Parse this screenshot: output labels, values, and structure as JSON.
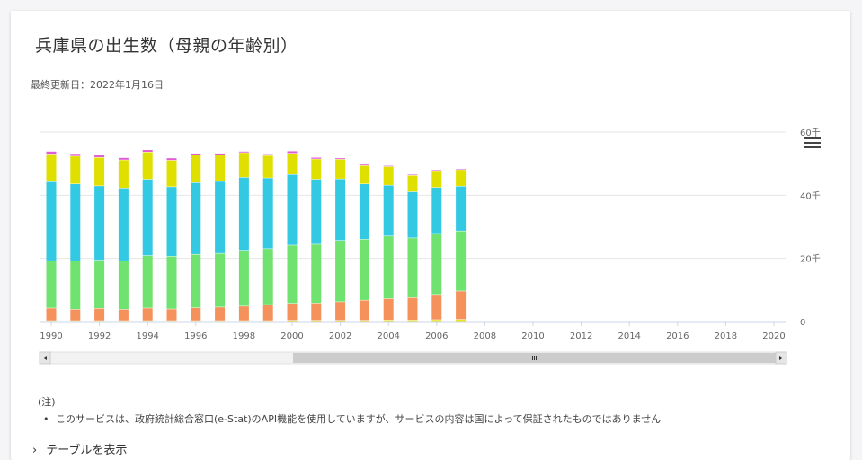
{
  "page": {
    "title": "兵庫県の出生数（母親の年齢別）",
    "updated": "最終更新日：2022年1月16日",
    "note_head": "(注)",
    "note_item": "このサービスは、政府統計総合窓口(e-Stat)のAPI機能を使用していますが、サービスの内容は国によって保証されたものではありません",
    "table_toggle": "テーブルを表示",
    "menu_icon": "hamburger-icon"
  },
  "chart_data": {
    "type": "bar",
    "stacked": true,
    "title": "",
    "xlabel": "",
    "ylabel": "",
    "xlim": [
      1990,
      2020
    ],
    "ylim": [
      0,
      60000
    ],
    "y_tick_labels": [
      "0",
      "20千",
      "40千",
      "60千"
    ],
    "y_tick_values": [
      0,
      20000,
      40000,
      60000
    ],
    "x_tick_labels": [
      "1990",
      "1992",
      "1994",
      "1996",
      "1998",
      "2000",
      "2002",
      "2004",
      "2006",
      "2008",
      "2010",
      "2012",
      "2014",
      "2016",
      "2018",
      "2020"
    ],
    "grid": true,
    "y_axis_side": "right",
    "navigator_scrollbar": true,
    "categories": [
      1990,
      1991,
      1992,
      1993,
      1994,
      1995,
      1996,
      1997,
      1998,
      1999,
      2000,
      2001,
      2002,
      2003,
      2004,
      2005,
      2006,
      2007
    ],
    "series": [
      {
        "color": "#e6e61a",
        "values": [
          200,
          200,
          200,
          200,
          200,
          200,
          200,
          200,
          200,
          200,
          300,
          300,
          300,
          300,
          400,
          400,
          500,
          600
        ]
      },
      {
        "color": "#f5925c",
        "values": [
          4000,
          3600,
          3900,
          3600,
          4000,
          3700,
          4100,
          4300,
          4600,
          5100,
          5400,
          5500,
          5900,
          6400,
          6800,
          7100,
          8000,
          9000
        ]
      },
      {
        "color": "#6fe26f",
        "values": [
          15000,
          15300,
          15300,
          15400,
          16600,
          16700,
          16900,
          17000,
          17700,
          17700,
          18400,
          18600,
          19400,
          19300,
          19800,
          18900,
          19300,
          19000
        ]
      },
      {
        "color": "#33c9e3",
        "values": [
          25000,
          24400,
          23500,
          23000,
          24200,
          22000,
          22700,
          22800,
          23100,
          22400,
          22400,
          20600,
          19500,
          17500,
          16100,
          14600,
          14600,
          14200
        ]
      },
      {
        "color": "#e0e000",
        "values": [
          8800,
          8800,
          9000,
          8900,
          8600,
          8400,
          8800,
          8400,
          7800,
          7100,
          6700,
          6400,
          6200,
          5800,
          5900,
          5200,
          5300,
          5200
        ]
      },
      {
        "color": "#e05cd5",
        "values": [
          800,
          800,
          700,
          700,
          700,
          700,
          500,
          500,
          400,
          500,
          700,
          500,
          400,
          400,
          300,
          300,
          300,
          300
        ]
      }
    ]
  }
}
